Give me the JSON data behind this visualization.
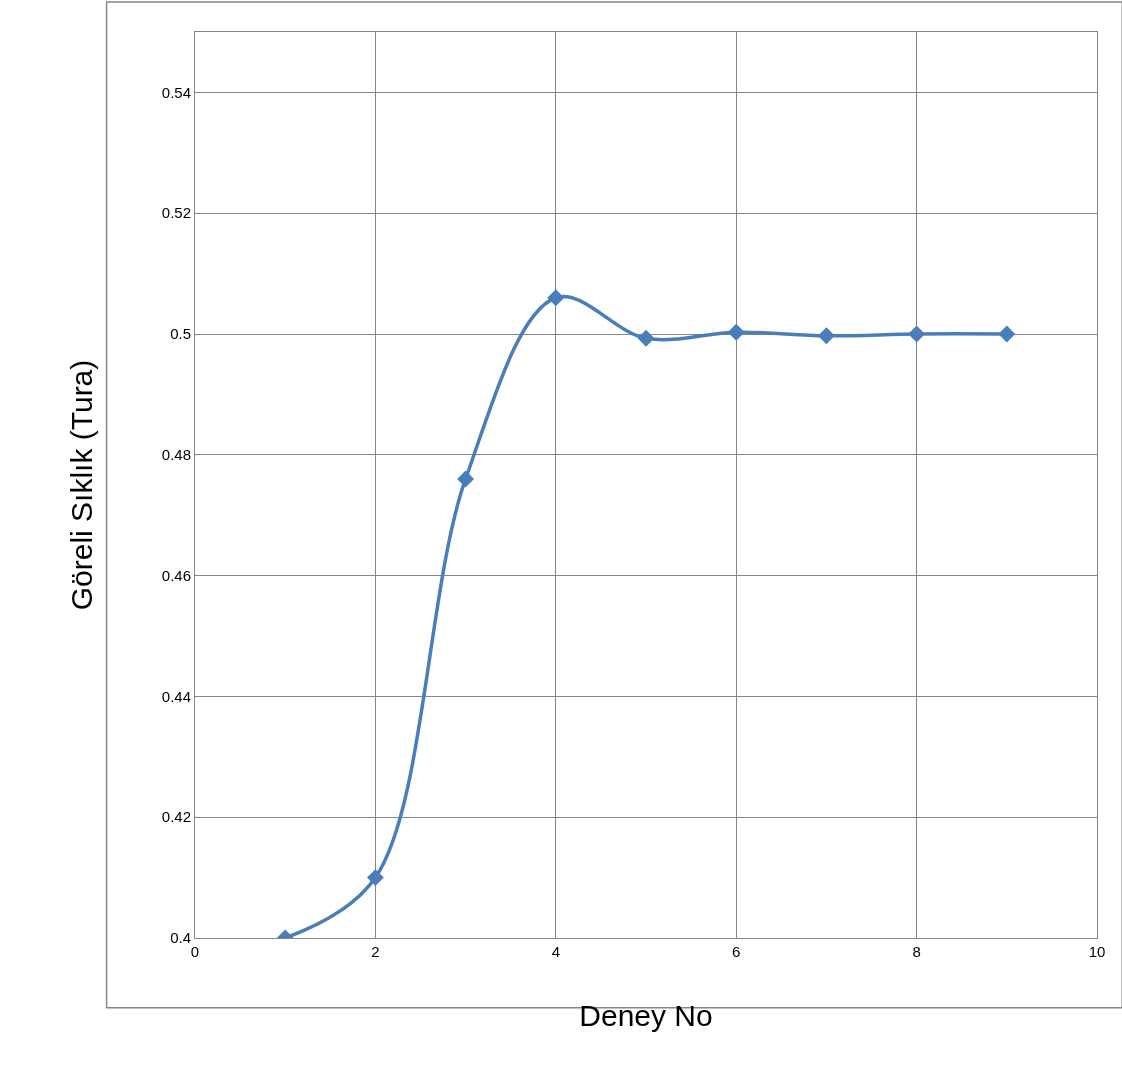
{
  "chart_data": {
    "type": "line",
    "xlabel": "Deney No",
    "ylabel": "Göreli Sıklık (Tura)",
    "x": [
      1,
      2,
      3,
      4,
      5,
      6,
      7,
      8,
      9
    ],
    "series": [
      {
        "color": "#4a7ebb",
        "values": [
          0.4,
          0.41,
          0.476,
          0.506,
          0.4993,
          0.5003,
          0.4997,
          0.5,
          0.5
        ]
      }
    ],
    "xlim": [
      0,
      10
    ],
    "xticks": [
      0,
      2,
      4,
      6,
      8,
      10
    ],
    "ylim": [
      0.4,
      0.55
    ],
    "yticks": [
      0.4,
      0.42,
      0.44,
      0.46,
      0.48,
      0.5,
      0.52,
      0.54
    ],
    "grid": true,
    "marker": "diamond",
    "line_style": "solid"
  }
}
